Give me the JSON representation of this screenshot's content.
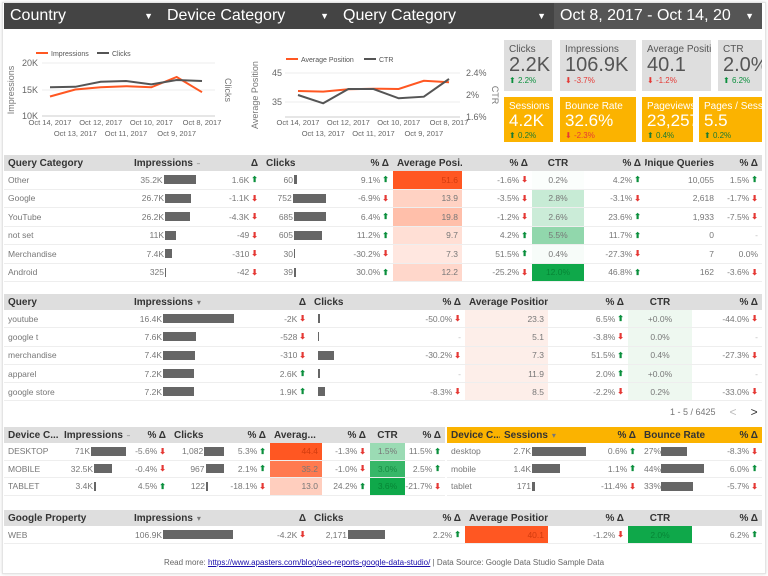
{
  "filters": [
    {
      "label": "Country"
    },
    {
      "label": "Device Category"
    },
    {
      "label": "Query Category"
    }
  ],
  "date_range": "Oct 8, 2017 - Oct 14, 20",
  "chart_data": [
    {
      "type": "line",
      "x": [
        "Oct 14, 2017",
        "Oct 13, 2017",
        "Oct 12, 2017",
        "Oct 11, 2017",
        "Oct 10, 2017",
        "Oct 9, 2017",
        "Oct 8, 2017"
      ],
      "series": [
        {
          "name": "Impressions",
          "axis": "left",
          "color": "#ff5722",
          "values": [
            13800,
            15100,
            15500,
            15700,
            15500,
            17400,
            14600
          ]
        },
        {
          "name": "Clicks",
          "axis": "right",
          "color": "#555555",
          "values": [
            292,
            294,
            313,
            316,
            303,
            320,
            316
          ]
        }
      ],
      "ylabel": "Impressions",
      "y2label": "Clicks",
      "yticks": [
        "20K",
        "15K",
        "10K"
      ],
      "ylim": [
        10000,
        20000
      ],
      "legend": "top-left",
      "grid": true
    },
    {
      "type": "line",
      "x": [
        "Oct 14, 2017",
        "Oct 13, 2017",
        "Oct 12, 2017",
        "Oct 11, 2017",
        "Oct 10, 2017",
        "Oct 9, 2017",
        "Oct 8, 2017"
      ],
      "series": [
        {
          "name": "Average Position",
          "axis": "left",
          "color": "#ff5722",
          "values": [
            38.8,
            38.6,
            39.4,
            39.6,
            39.5,
            42.3,
            41.8
          ]
        },
        {
          "name": "CTR",
          "axis": "right",
          "color": "#555555",
          "values": [
            2.0,
            1.85,
            2.11,
            2.11,
            1.94,
            1.97,
            2.29
          ]
        }
      ],
      "ylabel": "Average Position",
      "y2label": "CTR",
      "yticks": [
        "45",
        "35"
      ],
      "y2ticks": [
        "2.4%",
        "2%",
        "1.6%"
      ],
      "legend": "top-left",
      "grid": true
    }
  ],
  "kpis": [
    {
      "label": "Clicks",
      "value": "2.2K",
      "delta": "2.2%",
      "dir": "up"
    },
    {
      "label": "Impressions",
      "value": "106.9K",
      "delta": "-3.7%",
      "dir": "down"
    },
    {
      "label": "Average Position",
      "value": "40.1",
      "delta": "-1.2%",
      "dir": "down"
    },
    {
      "label": "CTR",
      "value": "2.0%",
      "delta": "6.2%",
      "dir": "up"
    }
  ],
  "ga_kpis": [
    {
      "label": "Sessions",
      "value": "4.2K",
      "delta": "0.2%",
      "dir": "up"
    },
    {
      "label": "Bounce Rate",
      "value": "32.6%",
      "delta": "-2.3%",
      "dir": "down"
    },
    {
      "label": "Pageviews",
      "value": "23,257",
      "delta": "0.4%",
      "dir": "up"
    },
    {
      "label": "Pages / Sessions",
      "value": "5.5",
      "delta": "0.2%",
      "dir": "up"
    }
  ],
  "colors": {
    "heat_red": "#ff5722",
    "heat_green": "#0fa84a",
    "ga_accent": "#fbb300",
    "up": "#0a8f3c",
    "down": "#e53935"
  },
  "tables": {
    "query_category": {
      "headers": [
        "Query Category",
        "Impressions",
        "Δ",
        "Clicks",
        "% Δ",
        "Average Posi...",
        "% Δ",
        "CTR",
        "% Δ",
        "Unique Queries",
        "% Δ"
      ],
      "rows": [
        [
          "Other",
          "35.2K",
          "1.6K",
          "60",
          "9.1%",
          "51.6",
          "-1.6%",
          "0.2%",
          "4.2%",
          "10,055",
          "1.5%"
        ],
        [
          "Google",
          "26.7K",
          "-1.1K",
          "752",
          "-6.9%",
          "13.9",
          "-3.5%",
          "2.8%",
          "-3.1%",
          "2,618",
          "-1.7%"
        ],
        [
          "YouTube",
          "26.2K",
          "-4.3K",
          "685",
          "6.4%",
          "19.8",
          "-1.2%",
          "2.6%",
          "23.6%",
          "1,933",
          "-7.5%"
        ],
        [
          "not set",
          "11K",
          "-49",
          "605",
          "11.2%",
          "9.7",
          "4.2%",
          "5.5%",
          "11.7%",
          "0",
          "-"
        ],
        [
          "Merchandise",
          "7.4K",
          "-310",
          "30",
          "-30.2%",
          "7.3",
          "51.5%",
          "0.4%",
          "-27.3%",
          "7",
          "0.0%"
        ],
        [
          "Android",
          "325",
          "-42",
          "39",
          "30.0%",
          "12.2",
          "-25.2%",
          "12.0%",
          "46.8%",
          "162",
          "-3.6%"
        ]
      ]
    },
    "queries": {
      "headers": [
        "Query",
        "Impressions",
        "Δ",
        "Clicks",
        "% Δ",
        "Average Position",
        "% Δ",
        "CTR",
        "% Δ"
      ],
      "rows": [
        [
          "youtube",
          "16.4K",
          "-2K",
          0.15,
          "-50.0%",
          "23.3",
          "6.5%",
          "+0.0%",
          "-44.0%"
        ],
        [
          "google t",
          "7.6K",
          "-528",
          0.08,
          "-",
          "5.1",
          "-3.8%",
          "0.0%",
          "-"
        ],
        [
          "merchandise",
          "7.4K",
          "-310",
          1,
          "-30.2%",
          "7.3",
          "51.5%",
          "0.4%",
          "-27.3%"
        ],
        [
          "apparel",
          "7.2K",
          "2.6K",
          0.15,
          "-",
          "11.9",
          "2.0%",
          "+0.0%",
          "-"
        ],
        [
          "google store",
          "7.2K",
          "1.9K",
          0.45,
          "-8.3%",
          "8.5",
          "-2.2%",
          "0.2%",
          "-33.0%"
        ]
      ],
      "pagination": {
        "range": "1 - 5 / 6425",
        "prev": "<",
        "next": ">"
      }
    },
    "devices": {
      "headers": [
        "Device C...",
        "Impressions",
        "% Δ",
        "Clicks",
        "% Δ",
        "Averag...",
        "% Δ",
        "CTR",
        "% Δ"
      ],
      "rows": [
        [
          "DESKTOP",
          "71K",
          "-5.6%",
          "1,082",
          "5.3%",
          "44.4",
          "-1.3%",
          "1.5%",
          "11.5%"
        ],
        [
          "MOBILE",
          "32.5K",
          "-0.4%",
          "967",
          "2.1%",
          "35.2",
          "-1.0%",
          "3.0%",
          "2.5%"
        ],
        [
          "TABLET",
          "3.4K",
          "4.5%",
          "122",
          "-18.1%",
          "13.0",
          "24.2%",
          "3.6%",
          "-21.7%"
        ]
      ]
    },
    "ga_devices": {
      "headers": [
        "Device C...",
        "Sessions",
        "% Δ",
        "Bounce Rate",
        "% Δ"
      ],
      "rows": [
        [
          "desktop",
          "2.7K",
          "0.6%",
          "27%",
          "-8.3%"
        ],
        [
          "mobile",
          "1.4K",
          "1.1%",
          "44%",
          "6.0%"
        ],
        [
          "tablet",
          "171",
          "-11.4%",
          "33%",
          "-5.7%"
        ]
      ]
    },
    "property": {
      "headers": [
        "Google Property",
        "Impressions",
        "Δ",
        "Clicks",
        "% Δ",
        "Average Position",
        "% Δ",
        "CTR",
        "% Δ"
      ],
      "rows": [
        [
          "WEB",
          "106.9K",
          "-4.2K",
          "2,171",
          "2.2%",
          "40.1",
          "-1.2%",
          "2.0%",
          "6.2%"
        ]
      ]
    }
  },
  "footer": {
    "prefix": "Read more: ",
    "link": "https://www.apasters.com/blog/seo-reports-google-data-studio/",
    "suffix": " | Data Source: Google Data Studio Sample Data"
  }
}
